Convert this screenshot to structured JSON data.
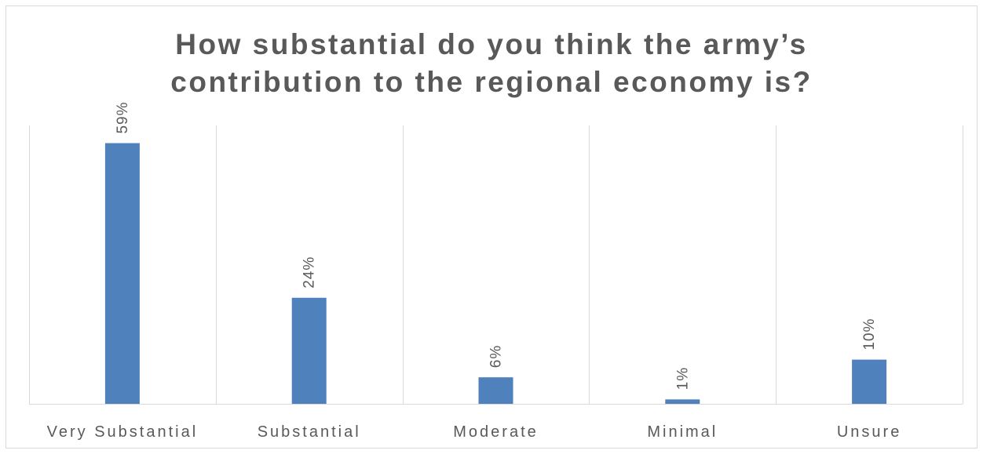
{
  "chart_data": {
    "type": "bar",
    "title_lines": [
      "How substantial do you think the army’s",
      "contribution to the regional economy is?"
    ],
    "categories": [
      "Very Substantial",
      "Substantial",
      "Moderate",
      "Minimal",
      "Unsure"
    ],
    "values": [
      59,
      24,
      6,
      1,
      10
    ],
    "value_labels": [
      "59%",
      "24%",
      "6%",
      "1%",
      "10%"
    ],
    "unit": "%",
    "ylim": [
      0,
      63
    ],
    "legend": "none",
    "gridlines": "vertical category separators",
    "colors": {
      "bar": "#4f81bd",
      "grid": "#d9d9d9",
      "text": "#595959"
    }
  }
}
